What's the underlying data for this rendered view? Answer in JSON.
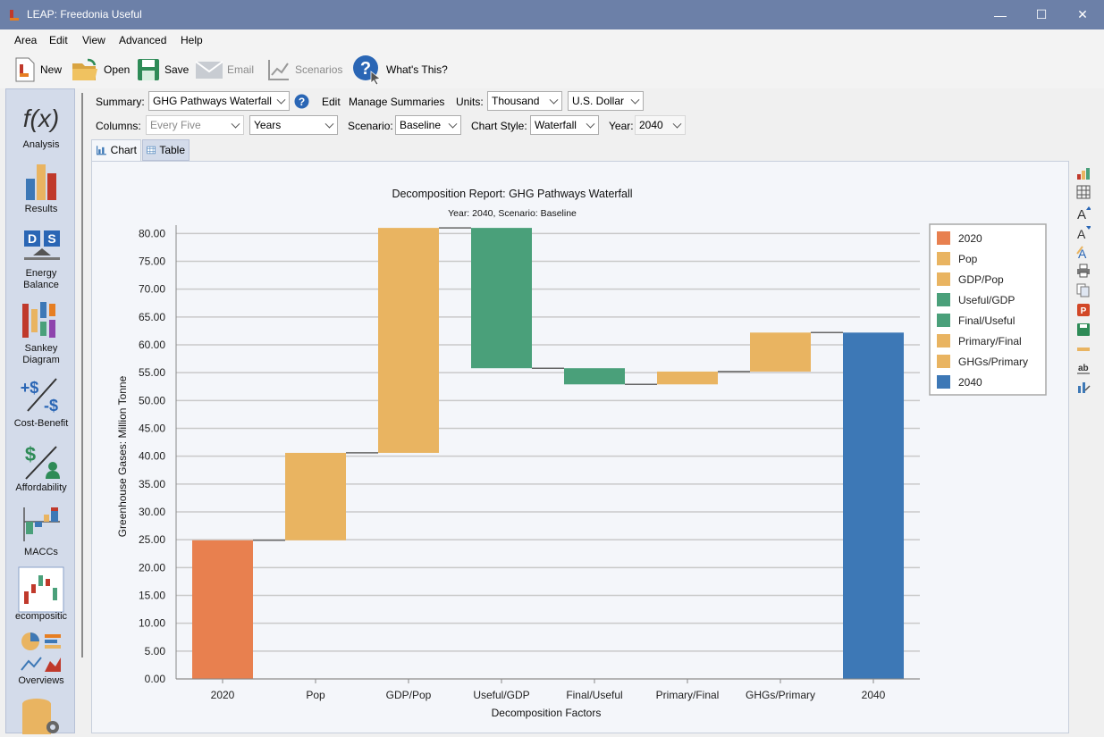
{
  "window": {
    "title": "LEAP: Freedonia Useful",
    "minimize": "—",
    "maximize": "☐",
    "close": "✕"
  },
  "menu": [
    "Area",
    "Edit",
    "View",
    "Advanced",
    "Help"
  ],
  "toolbar": {
    "new": "New",
    "open": "Open",
    "save": "Save",
    "email": "Email",
    "scenarios": "Scenarios",
    "whats_this": "What's This?"
  },
  "sidebar": [
    {
      "label": "Analysis",
      "icon": "function-icon"
    },
    {
      "label": "Results",
      "icon": "bar-chart-icon"
    },
    {
      "label": "Energy\nBalance",
      "icon": "energy-balance-icon"
    },
    {
      "label": "Sankey\nDiagram",
      "icon": "sankey-icon"
    },
    {
      "label": "Cost-Benefit",
      "icon": "cost-benefit-icon"
    },
    {
      "label": "Affordability",
      "icon": "affordability-icon"
    },
    {
      "label": "MACCs",
      "icon": "macc-icon"
    },
    {
      "label": "ecompositic",
      "icon": "decomposition-icon"
    },
    {
      "label": "Overviews",
      "icon": "overviews-icon"
    }
  ],
  "controls": {
    "summary_label": "Summary:",
    "summary_value": "GHG Pathways Waterfall",
    "edit": "Edit",
    "manage_summaries": "Manage Summaries",
    "units_label": "Units:",
    "units_value": "Thousand",
    "currency_value": "U.S. Dollar",
    "columns_label": "Columns:",
    "columns_value": "Every Five",
    "columns_unit": "Years",
    "scenario_label": "Scenario:",
    "scenario_value": "Baseline",
    "chart_style_label": "Chart Style:",
    "chart_style_value": "Waterfall",
    "year_label": "Year:",
    "year_value": "2040"
  },
  "tabs": {
    "chart": "Chart",
    "table": "Table"
  },
  "colors": {
    "start": "#e8804f",
    "positive": "#e9b461",
    "negative": "#4aa07a",
    "end": "#3d78b6",
    "titlebar": "#6c80a8"
  },
  "chart_data": {
    "type": "bar",
    "subtype": "waterfall",
    "title": "Decomposition Report: GHG Pathways Waterfall",
    "subtitle": "Year: 2040, Scenario: Baseline",
    "xlabel": "Decomposition Factors",
    "ylabel": "Greenhouse Gases: Million Tonne",
    "ylim": [
      0,
      80
    ],
    "yticks": [
      "0.00",
      "5.00",
      "10.00",
      "15.00",
      "20.00",
      "25.00",
      "30.00",
      "35.00",
      "40.00",
      "45.00",
      "50.00",
      "55.00",
      "60.00",
      "65.00",
      "70.00",
      "75.00",
      "80.00"
    ],
    "categories": [
      "2020",
      "Pop",
      "GDP/Pop",
      "Useful/GDP",
      "Final/Useful",
      "Primary/Final",
      "GHGs/Primary",
      "2040"
    ],
    "bars": [
      {
        "name": "2020",
        "start": 0,
        "end": 24.9
      },
      {
        "name": "Pop",
        "start": 24.9,
        "end": 40.6
      },
      {
        "name": "GDP/Pop",
        "start": 40.6,
        "end": 81.0
      },
      {
        "name": "Useful/GDP",
        "start": 81.0,
        "end": 55.8
      },
      {
        "name": "Final/Useful",
        "start": 55.8,
        "end": 52.9
      },
      {
        "name": "Primary/Final",
        "start": 52.9,
        "end": 55.2
      },
      {
        "name": "GHGs/Primary",
        "start": 55.2,
        "end": 62.2
      },
      {
        "name": "2040",
        "start": 0,
        "end": 62.2
      }
    ],
    "legend": [
      {
        "name": "2020",
        "color": "#e8804f"
      },
      {
        "name": "Pop",
        "color": "#e9b461"
      },
      {
        "name": "GDP/Pop",
        "color": "#e9b461"
      },
      {
        "name": "Useful/GDP",
        "color": "#4aa07a"
      },
      {
        "name": "Final/Useful",
        "color": "#4aa07a"
      },
      {
        "name": "Primary/Final",
        "color": "#e9b461"
      },
      {
        "name": "GHGs/Primary",
        "color": "#e9b461"
      },
      {
        "name": "2040",
        "color": "#3d78b6"
      }
    ],
    "legend_position": "top-right",
    "grid": true
  }
}
